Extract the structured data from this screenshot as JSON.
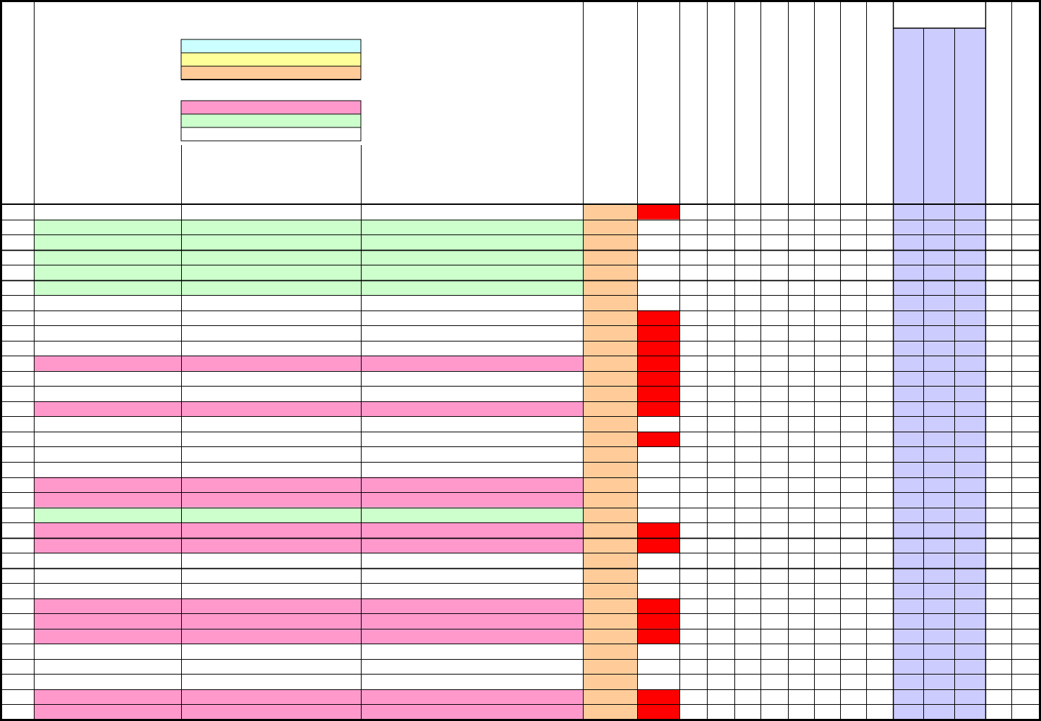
{
  "colors": {
    "line": "#000000",
    "background": "#ffffff",
    "legend_cyan": "#ccffff",
    "legend_yellow": "#ffff99",
    "legend_orange": "#ffcc99",
    "legend_pink": "#ff99cc",
    "legend_green": "#ccffcc",
    "legend_white": "#ffffff",
    "orange_column": "#ffcc99",
    "status_red": "#ff0000",
    "lavender_group": "#ccccff"
  },
  "legend": {
    "group_one": [
      {
        "swatch": "cyan-swatch",
        "color": "#ccffff"
      },
      {
        "swatch": "yellow-swatch",
        "color": "#ffff99"
      },
      {
        "swatch": "orange-swatch",
        "color": "#ffcc99"
      }
    ],
    "group_two": [
      {
        "swatch": "pink-swatch",
        "color": "#ff99cc"
      },
      {
        "swatch": "green-swatch",
        "color": "#ccffcc"
      },
      {
        "swatch": "white-swatch",
        "color": "#ffffff"
      }
    ]
  },
  "rows": [
    {
      "fill": "none",
      "status": "red"
    },
    {
      "fill": "green",
      "status": "none"
    },
    {
      "fill": "green",
      "status": "none"
    },
    {
      "fill": "green",
      "status": "none"
    },
    {
      "fill": "green",
      "status": "none"
    },
    {
      "fill": "green",
      "status": "none"
    },
    {
      "fill": "none",
      "status": "none"
    },
    {
      "fill": "none",
      "status": "red"
    },
    {
      "fill": "none",
      "status": "red"
    },
    {
      "fill": "none",
      "status": "red"
    },
    {
      "fill": "pink",
      "status": "red"
    },
    {
      "fill": "none",
      "status": "red"
    },
    {
      "fill": "none",
      "status": "red"
    },
    {
      "fill": "pink",
      "status": "red"
    },
    {
      "fill": "none",
      "status": "none"
    },
    {
      "fill": "none",
      "status": "red"
    },
    {
      "fill": "none",
      "status": "none"
    },
    {
      "fill": "none",
      "status": "none"
    },
    {
      "fill": "pink",
      "status": "none"
    },
    {
      "fill": "pink",
      "status": "none"
    },
    {
      "fill": "green",
      "status": "none"
    },
    {
      "fill": "pink",
      "status": "red"
    },
    {
      "fill": "pink",
      "status": "red"
    },
    {
      "fill": "none",
      "status": "none"
    },
    {
      "fill": "none",
      "status": "none"
    },
    {
      "fill": "none",
      "status": "none"
    },
    {
      "fill": "pink",
      "status": "red"
    },
    {
      "fill": "pink",
      "status": "red"
    },
    {
      "fill": "pink",
      "status": "red"
    },
    {
      "fill": "none",
      "status": "none"
    },
    {
      "fill": "none",
      "status": "none"
    },
    {
      "fill": "none",
      "status": "none"
    },
    {
      "fill": "pink",
      "status": "red"
    },
    {
      "fill": "pink",
      "status": "red"
    }
  ]
}
